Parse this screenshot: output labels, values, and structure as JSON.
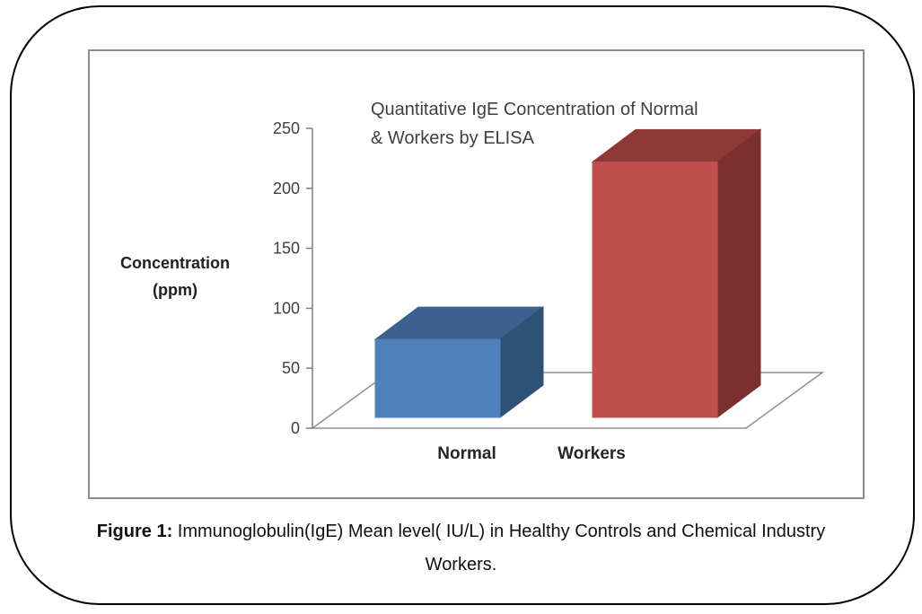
{
  "figure": {
    "caption": {
      "figure_label": "Figure 1:",
      "line1_rest": " Immunoglobulin(IgE) Mean level( IU/L) in Healthy Controls and Chemical Industry",
      "line2": "Workers."
    }
  },
  "chart_data": {
    "type": "bar",
    "projection": "3d",
    "title": "Quantitative IgE Concentration of Normal & Workers by ELISA",
    "title_lines": [
      "Quantitative IgE Concentration of Normal",
      "& Workers by ELISA"
    ],
    "ylabel": "Concentration (ppm)",
    "ylabel_lines": [
      "Concentration",
      "(ppm)"
    ],
    "xlabel": "",
    "categories": [
      "Normal",
      "Workers"
    ],
    "values": [
      65,
      213
    ],
    "ylim": [
      0,
      250
    ],
    "yticks": [
      0,
      50,
      100,
      150,
      200,
      250
    ],
    "grid": false,
    "legend": false,
    "bar_faces": [
      {
        "category": "Normal",
        "front": "#4F81BD",
        "top": "#3A618F",
        "side": "#2F5175"
      },
      {
        "category": "Workers",
        "front": "#C0504D",
        "top": "#8F3937",
        "side": "#7B2F2E"
      }
    ],
    "colors": {
      "axis": "#7f7f7f",
      "floor_stroke": "#8f8f8f",
      "tick_label": "#404040",
      "title": "#3f3f3f",
      "category_label": "#262626"
    }
  }
}
